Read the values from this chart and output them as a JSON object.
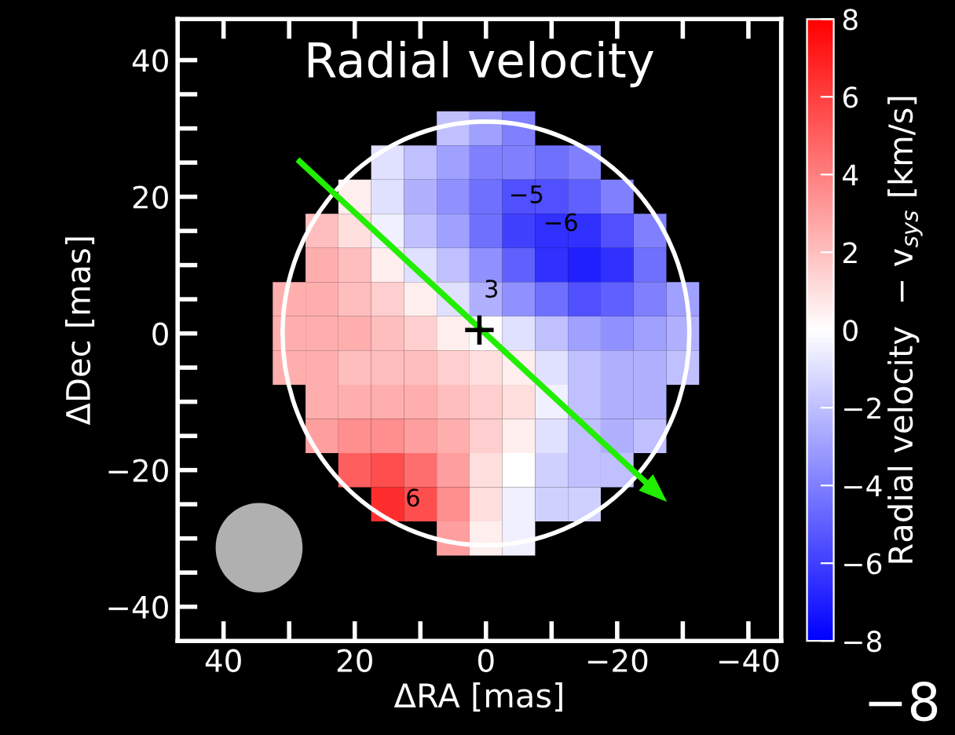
{
  "chart_data": {
    "type": "heatmap",
    "title": "Radial velocity",
    "xlabel": "ΔRA [mas]",
    "ylabel": "ΔDec [mas]",
    "clabel": "Radial velocity  − v$_{sys}$ [km/s]",
    "x": [
      30,
      25,
      20,
      15,
      10,
      5,
      0,
      -5,
      -10,
      -15,
      -20,
      -25,
      -30
    ],
    "y": [
      30,
      25,
      20,
      15,
      10,
      5,
      0,
      -5,
      -10,
      -15,
      -20,
      -25,
      -30
    ],
    "cells": [
      [
        null,
        null,
        null,
        null,
        null,
        -2,
        -3,
        -4,
        null,
        null,
        null,
        null,
        null
      ],
      [
        null,
        null,
        null,
        -1,
        -2,
        -3,
        -4,
        -4,
        -4.5,
        -4,
        null,
        null,
        null
      ],
      [
        null,
        null,
        0.5,
        -1,
        -2.5,
        -3.5,
        -4.5,
        -5.5,
        -5.5,
        -5,
        -4,
        null,
        null
      ],
      [
        null,
        2,
        1,
        -0.5,
        -2,
        -3,
        -4.5,
        -6,
        -6.5,
        -6.5,
        -5.5,
        -4,
        null
      ],
      [
        null,
        2.5,
        2,
        0.5,
        -1,
        -2,
        -3.5,
        -5,
        -6.5,
        -7,
        -6.5,
        -4.5,
        null
      ],
      [
        2.5,
        2.5,
        2,
        1.5,
        0.5,
        -1,
        -2.5,
        -3.5,
        -4.5,
        -5.5,
        -5,
        -4,
        -3
      ],
      [
        2.5,
        2.5,
        2.5,
        2,
        1.5,
        0.5,
        0,
        -1,
        -2,
        -3,
        -3.5,
        -3,
        -2.5
      ],
      [
        2.5,
        2.5,
        2,
        2,
        2,
        1.5,
        1,
        0.5,
        -1,
        -2,
        -2.5,
        -2.5,
        -2
      ],
      [
        null,
        2.5,
        2.5,
        2.5,
        2.5,
        2,
        1.5,
        1,
        -0.5,
        -2,
        -2.5,
        -2.5,
        null
      ],
      [
        null,
        3,
        3.5,
        3.5,
        3,
        2.5,
        1.5,
        0.5,
        -1,
        -2,
        -2.5,
        -2,
        null
      ],
      [
        null,
        null,
        5,
        5.5,
        4.5,
        3,
        1,
        0,
        -1.5,
        -2,
        -2,
        null,
        null
      ],
      [
        null,
        null,
        null,
        6.5,
        5.5,
        3.5,
        1,
        -0.5,
        -1.5,
        -1.5,
        null,
        null,
        null
      ],
      [
        null,
        null,
        null,
        null,
        null,
        3,
        0.5,
        -0.5,
        null,
        null,
        null,
        null,
        null
      ]
    ],
    "clim": [
      -8,
      8
    ],
    "cticks": [
      -8,
      -6,
      -4,
      -2,
      0,
      2,
      4,
      6,
      8
    ],
    "xlim": [
      47,
      -45
    ],
    "ylim": [
      -45,
      46
    ],
    "xticks": [
      40,
      {
        "value": 30,
        "label": null
      },
      20,
      {
        "value": 10,
        "label": null
      },
      0,
      {
        "value": -10,
        "label": null
      },
      -20,
      {
        "value": -30,
        "label": null
      },
      -40
    ],
    "yticks": [
      -40,
      {
        "value": -35,
        "label": null
      },
      {
        "value": -30,
        "label": null
      },
      {
        "value": -25,
        "label": null
      },
      -20,
      {
        "value": -15,
        "label": null
      },
      {
        "value": -10,
        "label": null
      },
      {
        "value": -5,
        "label": null
      },
      0,
      {
        "value": 5,
        "label": null
      },
      {
        "value": 10,
        "label": null
      },
      {
        "value": 15,
        "label": null
      },
      20,
      {
        "value": 25,
        "label": null
      },
      {
        "value": 30,
        "label": null
      },
      {
        "value": 35,
        "label": null
      },
      40
    ],
    "annotations": [
      "−5",
      "−6",
      "3",
      "6",
      "−8"
    ]
  }
}
